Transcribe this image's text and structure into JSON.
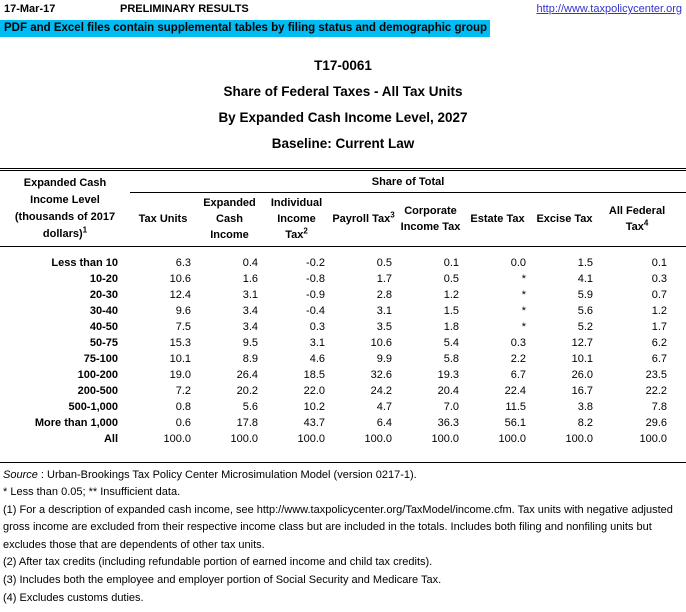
{
  "header": {
    "date": "17-Mar-17",
    "results_label": "PRELIMINARY RESULTS",
    "url": "http://www.taxpolicycenter.org",
    "url_color": "#3333cc"
  },
  "banner": {
    "text": "PDF and Excel files contain supplemental tables by filing status and demographic group",
    "background_color": "#00bcf2"
  },
  "title": {
    "code": "T17-0061",
    "line1": "Share of Federal Taxes - All Tax Units",
    "line2": "By Expanded Cash Income Level, 2027",
    "line3": "Baseline: Current Law"
  },
  "table": {
    "row_header": {
      "lines": [
        "Expanded Cash",
        "Income Level",
        "(thousands of 2017",
        "dollars)"
      ],
      "sup": "1"
    },
    "group_header": "Share of Total",
    "columns": [
      {
        "lines": [
          "Tax Units"
        ],
        "sup": ""
      },
      {
        "lines": [
          "Expanded",
          "Cash",
          "Income"
        ],
        "sup": ""
      },
      {
        "lines": [
          "Individual",
          "Income",
          "Tax"
        ],
        "sup": "2"
      },
      {
        "lines": [
          "Payroll Tax"
        ],
        "sup": "3"
      },
      {
        "lines": [
          "Corporate",
          "Income Tax"
        ],
        "sup": ""
      },
      {
        "lines": [
          "Estate Tax"
        ],
        "sup": ""
      },
      {
        "lines": [
          "Excise Tax"
        ],
        "sup": ""
      },
      {
        "lines": [
          "All Federal",
          "Tax"
        ],
        "sup": "4"
      }
    ],
    "rows": [
      {
        "label": "Less than 10",
        "values": [
          "6.3",
          "0.4",
          "-0.2",
          "0.5",
          "0.1",
          "0.0",
          "1.5",
          "0.1"
        ]
      },
      {
        "label": "10-20",
        "values": [
          "10.6",
          "1.6",
          "-0.8",
          "1.7",
          "0.5",
          "*",
          "4.1",
          "0.3"
        ]
      },
      {
        "label": "20-30",
        "values": [
          "12.4",
          "3.1",
          "-0.9",
          "2.8",
          "1.2",
          "*",
          "5.9",
          "0.7"
        ]
      },
      {
        "label": "30-40",
        "values": [
          "9.6",
          "3.4",
          "-0.4",
          "3.1",
          "1.5",
          "*",
          "5.6",
          "1.2"
        ]
      },
      {
        "label": "40-50",
        "values": [
          "7.5",
          "3.4",
          "0.3",
          "3.5",
          "1.8",
          "*",
          "5.2",
          "1.7"
        ]
      },
      {
        "label": "50-75",
        "values": [
          "15.3",
          "9.5",
          "3.1",
          "10.6",
          "5.4",
          "0.3",
          "12.7",
          "6.2"
        ]
      },
      {
        "label": "75-100",
        "values": [
          "10.1",
          "8.9",
          "4.6",
          "9.9",
          "5.8",
          "2.2",
          "10.1",
          "6.7"
        ]
      },
      {
        "label": "100-200",
        "values": [
          "19.0",
          "26.4",
          "18.5",
          "32.6",
          "19.3",
          "6.7",
          "26.0",
          "23.5"
        ]
      },
      {
        "label": "200-500",
        "values": [
          "7.2",
          "20.2",
          "22.0",
          "24.2",
          "20.4",
          "22.4",
          "16.7",
          "22.2"
        ]
      },
      {
        "label": "500-1,000",
        "values": [
          "0.8",
          "5.6",
          "10.2",
          "4.7",
          "7.0",
          "11.5",
          "3.8",
          "7.8"
        ]
      },
      {
        "label": "More than 1,000",
        "values": [
          "0.6",
          "17.8",
          "43.7",
          "6.4",
          "36.3",
          "56.1",
          "8.2",
          "29.6"
        ]
      },
      {
        "label": "All",
        "values": [
          "100.0",
          "100.0",
          "100.0",
          "100.0",
          "100.0",
          "100.0",
          "100.0",
          "100.0"
        ]
      }
    ]
  },
  "footnotes": {
    "source_label": "Source",
    "source_rest": " : Urban-Brookings Tax Policy Center Microsimulation Model (version 0217-1).",
    "lines": [
      "* Less than 0.05; ** Insufficient data.",
      "(1) For a description of expanded cash income, see http://www.taxpolicycenter.org/TaxModel/income.cfm. Tax units with negative adjusted gross income are excluded from their respective income class but are included in the totals. Includes both filing and nonfiling units but excludes those that are dependents of other tax units.",
      "(2) After tax credits (including refundable portion of earned income and child tax credits).",
      "(3) Includes both the employee and employer portion of Social Security and Medicare Tax.",
      "(4) Excludes customs duties."
    ]
  }
}
